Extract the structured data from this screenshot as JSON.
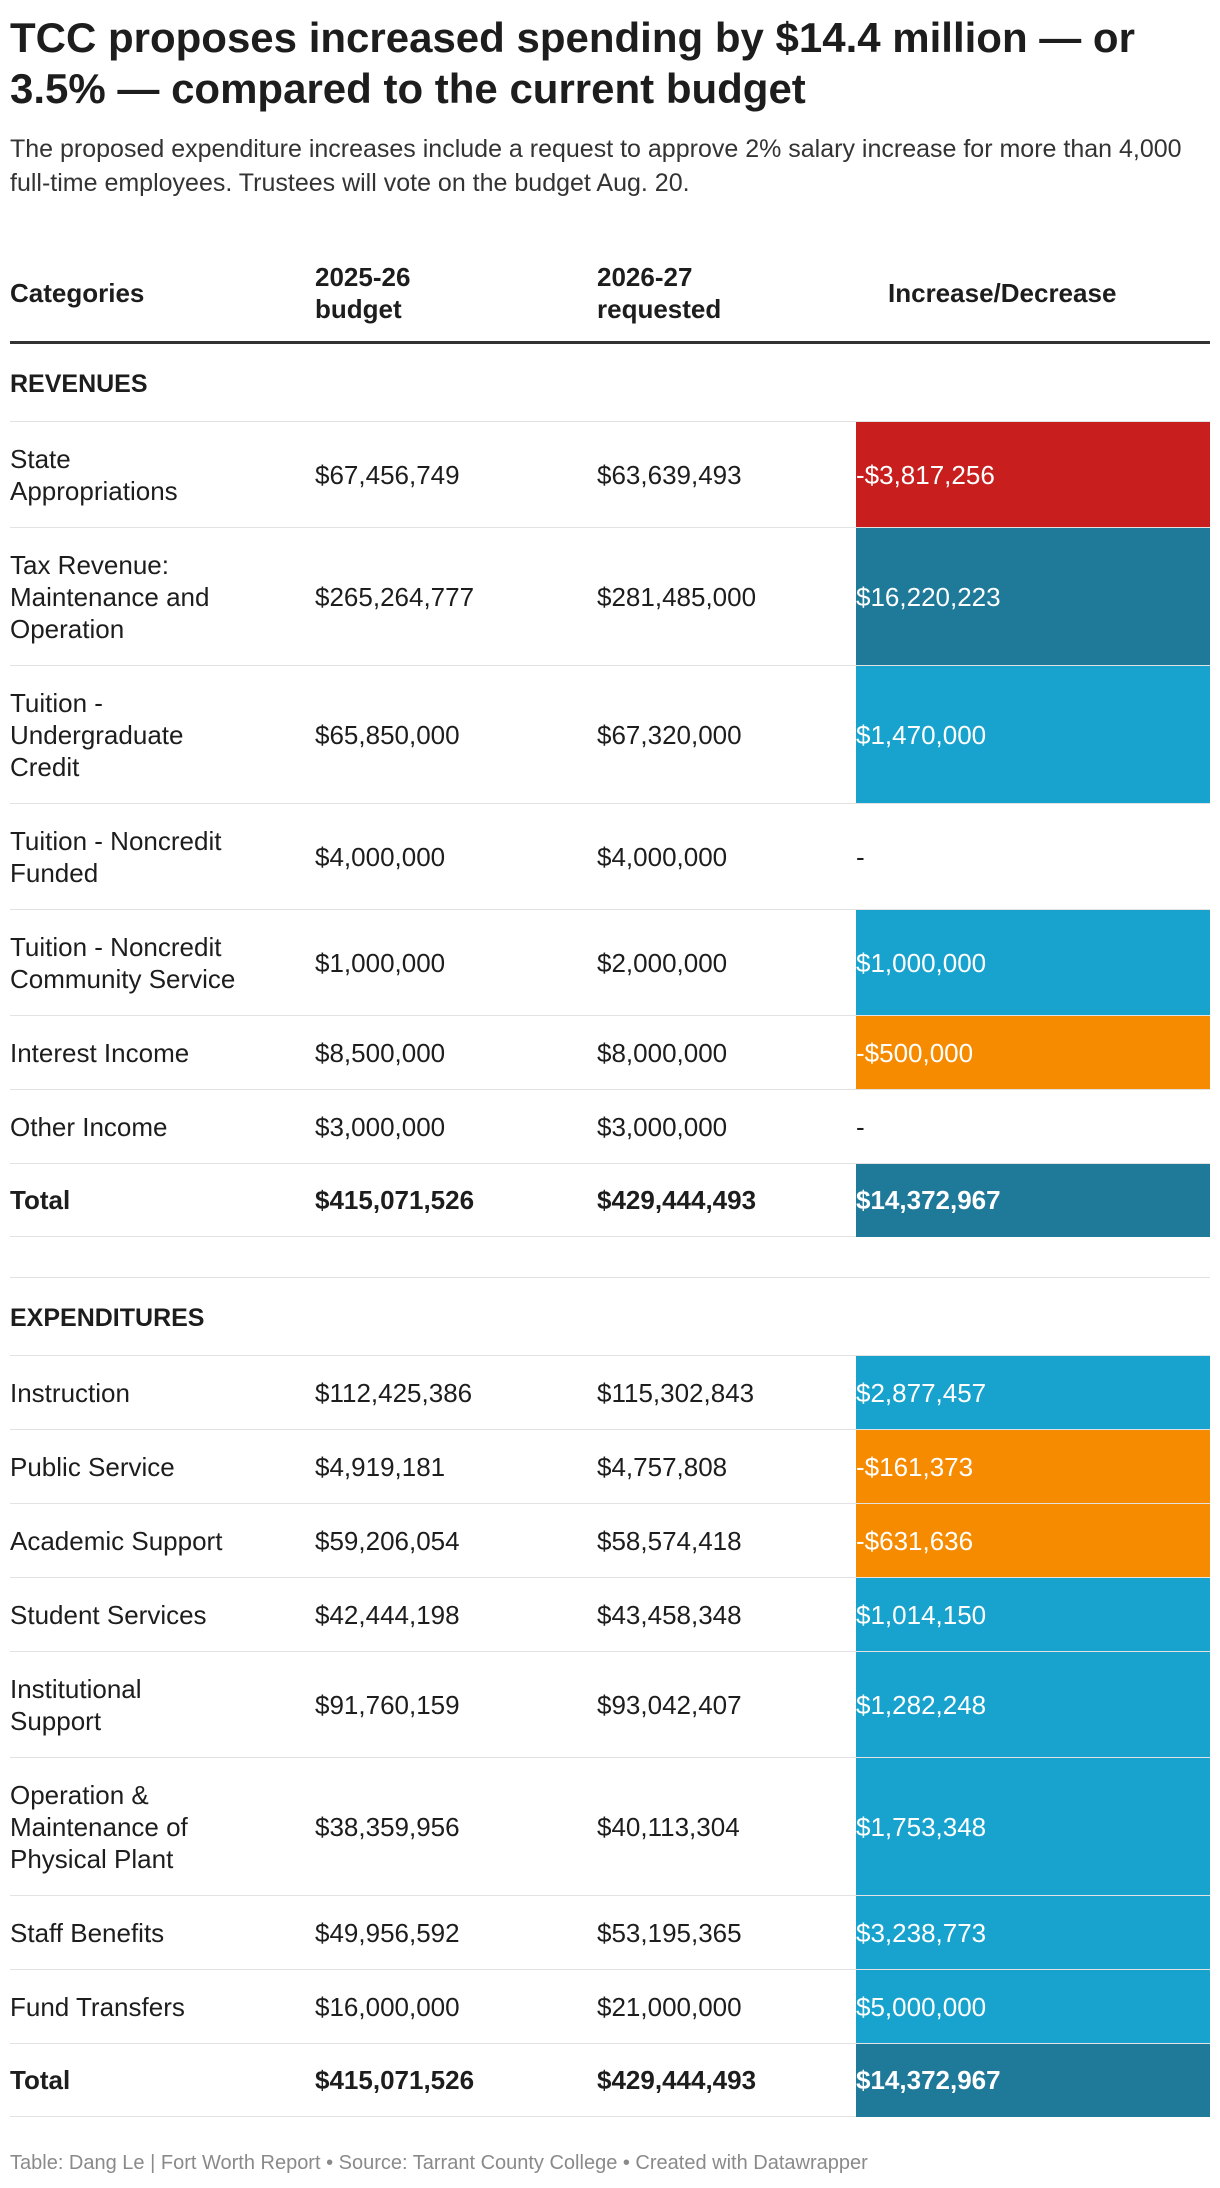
{
  "title": "TCC proposes increased spending by $14.4 million — or 3.5% — compared to the current budget",
  "subtitle": "The proposed expenditure increases include a request to approve 2% salary increase for more than 4,000 full-time employees. Trustees will vote on the budget Aug. 20.",
  "headers": [
    "Categories",
    "2025-26 budget",
    "2026-27 requested",
    "Increase/Decrease"
  ],
  "colors": {
    "dark_red": "#c81e1e",
    "dark_teal": "#1f7a9a",
    "light_blue": "#18a3cf",
    "orange": "#f78b00"
  },
  "chart_data": {
    "type": "table",
    "columns": [
      "Categories",
      "2025-26 budget",
      "2026-27 requested",
      "Increase/Decrease"
    ],
    "sections": [
      {
        "name": "REVENUES",
        "rows": [
          {
            "category": "State Appropriations",
            "budget_2025_26": "$67,456,749",
            "requested_2026_27": "$63,639,493",
            "change": "-$3,817,256",
            "color": "#c81e1e"
          },
          {
            "category": "Tax Revenue: Maintenance and Operation",
            "budget_2025_26": "$265,264,777",
            "requested_2026_27": "$281,485,000",
            "change": "$16,220,223",
            "color": "#1f7a9a"
          },
          {
            "category": "Tuition - Undergraduate Credit",
            "budget_2025_26": "$65,850,000",
            "requested_2026_27": "$67,320,000",
            "change": "$1,470,000",
            "color": "#18a3cf"
          },
          {
            "category": "Tuition - Noncredit Funded",
            "budget_2025_26": "$4,000,000",
            "requested_2026_27": "$4,000,000",
            "change": "-",
            "color": ""
          },
          {
            "category": "Tuition - Noncredit Community Service",
            "budget_2025_26": "$1,000,000",
            "requested_2026_27": "$2,000,000",
            "change": "$1,000,000",
            "color": "#18a3cf"
          },
          {
            "category": "Interest Income",
            "budget_2025_26": "$8,500,000",
            "requested_2026_27": "$8,000,000",
            "change": "-$500,000",
            "color": "#f78b00"
          },
          {
            "category": "Other Income",
            "budget_2025_26": "$3,000,000",
            "requested_2026_27": "$3,000,000",
            "change": "-",
            "color": ""
          }
        ],
        "total": {
          "category": "Total",
          "budget_2025_26": "$415,071,526",
          "requested_2026_27": "$429,444,493",
          "change": "$14,372,967",
          "color": "#1f7a9a"
        }
      },
      {
        "name": "EXPENDITURES",
        "rows": [
          {
            "category": "Instruction",
            "budget_2025_26": "$112,425,386",
            "requested_2026_27": "$115,302,843",
            "change": "$2,877,457",
            "color": "#18a3cf"
          },
          {
            "category": "Public Service",
            "budget_2025_26": "$4,919,181",
            "requested_2026_27": "$4,757,808",
            "change": "-$161,373",
            "color": "#f78b00"
          },
          {
            "category": "Academic Support",
            "budget_2025_26": "$59,206,054",
            "requested_2026_27": "$58,574,418",
            "change": "-$631,636",
            "color": "#f78b00"
          },
          {
            "category": "Student Services",
            "budget_2025_26": "$42,444,198",
            "requested_2026_27": "$43,458,348",
            "change": "$1,014,150",
            "color": "#18a3cf"
          },
          {
            "category": "Institutional Support",
            "budget_2025_26": "$91,760,159",
            "requested_2026_27": "$93,042,407",
            "change": "$1,282,248",
            "color": "#18a3cf"
          },
          {
            "category": "Operation & Maintenance of Physical Plant",
            "budget_2025_26": "$38,359,956",
            "requested_2026_27": "$40,113,304",
            "change": "$1,753,348",
            "color": "#18a3cf"
          },
          {
            "category": "Staff Benefits",
            "budget_2025_26": "$49,956,592",
            "requested_2026_27": "$53,195,365",
            "change": "$3,238,773",
            "color": "#18a3cf"
          },
          {
            "category": "Fund Transfers",
            "budget_2025_26": "$16,000,000",
            "requested_2026_27": "$21,000,000",
            "change": "$5,000,000",
            "color": "#18a3cf"
          }
        ],
        "total": {
          "category": "Total",
          "budget_2025_26": "$415,071,526",
          "requested_2026_27": "$429,444,493",
          "change": "$14,372,967",
          "color": "#1f7a9a"
        }
      }
    ]
  },
  "footer": "Table: Dang Le | Fort Worth Report • Source: Tarrant County College • Created with Datawrapper"
}
